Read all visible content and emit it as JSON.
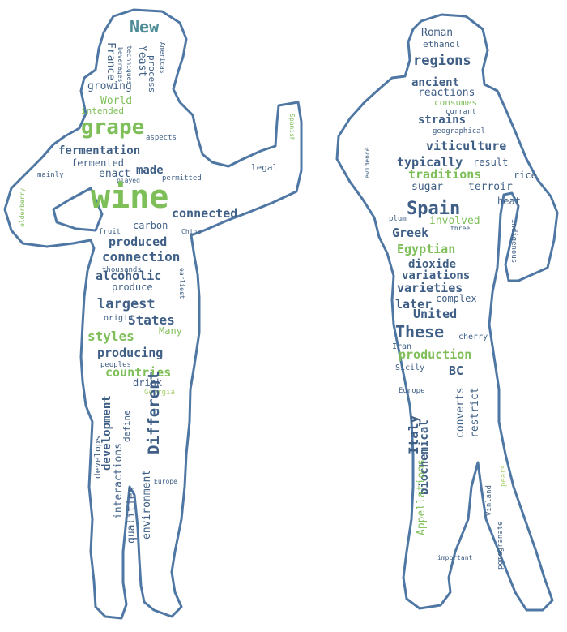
{
  "palette": {
    "outline": "#4f77a4",
    "word_blue": "#3f5f86",
    "word_teal": "#4e8c97",
    "word_green": "#7fbf5a",
    "word_lightgreen": "#a8cf6d"
  },
  "figures": {
    "left": {
      "words": [
        {
          "text": "New"
        },
        {
          "text": "France"
        },
        {
          "text": "beverages"
        },
        {
          "text": "techniques"
        },
        {
          "text": "Yeast"
        },
        {
          "text": "process"
        },
        {
          "text": "Americas"
        },
        {
          "text": "growing"
        },
        {
          "text": "World"
        },
        {
          "text": "intended"
        },
        {
          "text": "grape"
        },
        {
          "text": "aspects"
        },
        {
          "text": "fermentation"
        },
        {
          "text": "fermented"
        },
        {
          "text": "enact"
        },
        {
          "text": "made"
        },
        {
          "text": "mainly"
        },
        {
          "text": "played"
        },
        {
          "text": "permitted"
        },
        {
          "text": "legal"
        },
        {
          "text": "Spanish"
        },
        {
          "text": "wine"
        },
        {
          "text": "connected"
        },
        {
          "text": "carbon"
        },
        {
          "text": "fruit"
        },
        {
          "text": "China"
        },
        {
          "text": "produced"
        },
        {
          "text": "connection"
        },
        {
          "text": "thousands"
        },
        {
          "text": "alcoholic"
        },
        {
          "text": "produce"
        },
        {
          "text": "largest"
        },
        {
          "text": "earliest"
        },
        {
          "text": "origin"
        },
        {
          "text": "States"
        },
        {
          "text": "Many"
        },
        {
          "text": "styles"
        },
        {
          "text": "producing"
        },
        {
          "text": "peoples"
        },
        {
          "text": "countries"
        },
        {
          "text": "drink"
        },
        {
          "text": "Georgia"
        },
        {
          "text": "Different"
        },
        {
          "text": "define"
        },
        {
          "text": "development"
        },
        {
          "text": "develops"
        },
        {
          "text": "interactions"
        },
        {
          "text": "qualities"
        },
        {
          "text": "environment"
        },
        {
          "text": "elderberry"
        },
        {
          "text": "Europe"
        }
      ]
    },
    "right": {
      "words": [
        {
          "text": "Roman"
        },
        {
          "text": "ethanol"
        },
        {
          "text": "regions"
        },
        {
          "text": "ancient"
        },
        {
          "text": "reactions"
        },
        {
          "text": "consumes"
        },
        {
          "text": "currant"
        },
        {
          "text": "strains"
        },
        {
          "text": "geographical"
        },
        {
          "text": "viticulture"
        },
        {
          "text": "typically"
        },
        {
          "text": "result"
        },
        {
          "text": "evidence"
        },
        {
          "text": "traditions"
        },
        {
          "text": "rice"
        },
        {
          "text": "sugar"
        },
        {
          "text": "terroir"
        },
        {
          "text": "heat"
        },
        {
          "text": "Spain"
        },
        {
          "text": "plum"
        },
        {
          "text": "involved"
        },
        {
          "text": "indigenous"
        },
        {
          "text": "Greek"
        },
        {
          "text": "Egyptian"
        },
        {
          "text": "dioxide"
        },
        {
          "text": "variations"
        },
        {
          "text": "varieties"
        },
        {
          "text": "later"
        },
        {
          "text": "complex"
        },
        {
          "text": "United"
        },
        {
          "text": "These"
        },
        {
          "text": "cherry"
        },
        {
          "text": "Iran"
        },
        {
          "text": "production"
        },
        {
          "text": "Sicily"
        },
        {
          "text": "BC"
        },
        {
          "text": "Europe"
        },
        {
          "text": "Italy"
        },
        {
          "text": "converts"
        },
        {
          "text": "restrict"
        },
        {
          "text": "biochemical"
        },
        {
          "text": "Appellations"
        },
        {
          "text": "Vinland"
        },
        {
          "text": "pomegranate"
        },
        {
          "text": "pears"
        },
        {
          "text": "important"
        },
        {
          "text": "three"
        }
      ]
    }
  }
}
